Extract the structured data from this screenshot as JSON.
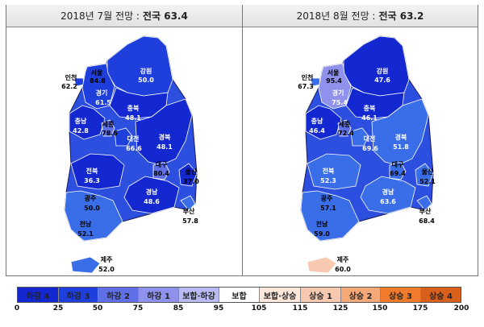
{
  "panels": [
    {
      "title": "2018년 7월 전망 :",
      "national": "전국 63.4",
      "regions": [
        {
          "name": "인천",
          "value": "62.2",
          "color": "#1f3fdc"
        },
        {
          "name": "서울",
          "value": "84.8",
          "color": "#5f6fe8"
        },
        {
          "name": "강원",
          "value": "50.0",
          "color": "#1f3fdc"
        },
        {
          "name": "경기",
          "value": "61.5",
          "color": "#1f3fdc"
        },
        {
          "name": "충북",
          "value": "48.1",
          "color": "#1428d2"
        },
        {
          "name": "충남",
          "value": "42.8",
          "color": "#1428d2"
        },
        {
          "name": "세종",
          "value": "78.6",
          "color": "#5f6fe8"
        },
        {
          "name": "대전",
          "value": "66.6",
          "color": "#1f3fdc"
        },
        {
          "name": "경북",
          "value": "48.1",
          "color": "#1428d2"
        },
        {
          "name": "대구",
          "value": "80.4",
          "color": "#5f6fe8"
        },
        {
          "name": "전북",
          "value": "36.3",
          "color": "#1428d2"
        },
        {
          "name": "울산",
          "value": "37.0",
          "color": "#1428d2"
        },
        {
          "name": "광주",
          "value": "50.0",
          "color": "#1f3fdc"
        },
        {
          "name": "경남",
          "value": "48.6",
          "color": "#1428d2"
        },
        {
          "name": "부산",
          "value": "57.8",
          "color": "#3a6ee8"
        },
        {
          "name": "전남",
          "value": "52.1",
          "color": "#3a6ee8"
        },
        {
          "name": "제주",
          "value": "52.0",
          "color": "#3a6ee8"
        }
      ]
    },
    {
      "title": "2018년 8월 전망 :",
      "national": "전국 63.2",
      "regions": [
        {
          "name": "인천",
          "value": "67.3",
          "color": "#3a6ee8"
        },
        {
          "name": "서울",
          "value": "95.4",
          "color": "#b8baf2"
        },
        {
          "name": "강원",
          "value": "47.6",
          "color": "#1428d2"
        },
        {
          "name": "경기",
          "value": "75.4",
          "color": "#8e92ec"
        },
        {
          "name": "충북",
          "value": "46.1",
          "color": "#1428d2"
        },
        {
          "name": "충남",
          "value": "46.4",
          "color": "#1428d2"
        },
        {
          "name": "세종",
          "value": "72.4",
          "color": "#5f6fe8"
        },
        {
          "name": "대전",
          "value": "69.6",
          "color": "#3a6ee8"
        },
        {
          "name": "경북",
          "value": "51.8",
          "color": "#3a6ee8"
        },
        {
          "name": "대구",
          "value": "69.4",
          "color": "#3a6ee8"
        },
        {
          "name": "전북",
          "value": "52.3",
          "color": "#3a6ee8"
        },
        {
          "name": "울산",
          "value": "52.1",
          "color": "#3a6ee8"
        },
        {
          "name": "광주",
          "value": "57.1",
          "color": "#3a6ee8"
        },
        {
          "name": "경남",
          "value": "63.6",
          "color": "#3a6ee8"
        },
        {
          "name": "부산",
          "value": "68.4",
          "color": "#3a6ee8"
        },
        {
          "name": "전남",
          "value": "59.0",
          "color": "#3a6ee8"
        },
        {
          "name": "제주",
          "value": "60.0",
          "color": "#f7c9b0"
        }
      ]
    }
  ],
  "legend": [
    {
      "label": "하강 4",
      "color": "#1428d2"
    },
    {
      "label": "하강 3",
      "color": "#1f3fdc"
    },
    {
      "label": "하강 2",
      "color": "#5f6fe8"
    },
    {
      "label": "하강 1",
      "color": "#8e92ec"
    },
    {
      "label": "보합·하강",
      "color": "#b8baf2"
    },
    {
      "label": "보합",
      "color": "#ffffff"
    },
    {
      "label": "보합·상승",
      "color": "#fde7db"
    },
    {
      "label": "상승 1",
      "color": "#f7c9b0"
    },
    {
      "label": "상승 2",
      "color": "#f5a878"
    },
    {
      "label": "상승 3",
      "color": "#f07b2b"
    },
    {
      "label": "상승 4",
      "color": "#d9601a"
    }
  ],
  "ticks": [
    "0",
    "25",
    "50",
    "75",
    "85",
    "95",
    "105",
    "115",
    "125",
    "150",
    "175",
    "200"
  ]
}
